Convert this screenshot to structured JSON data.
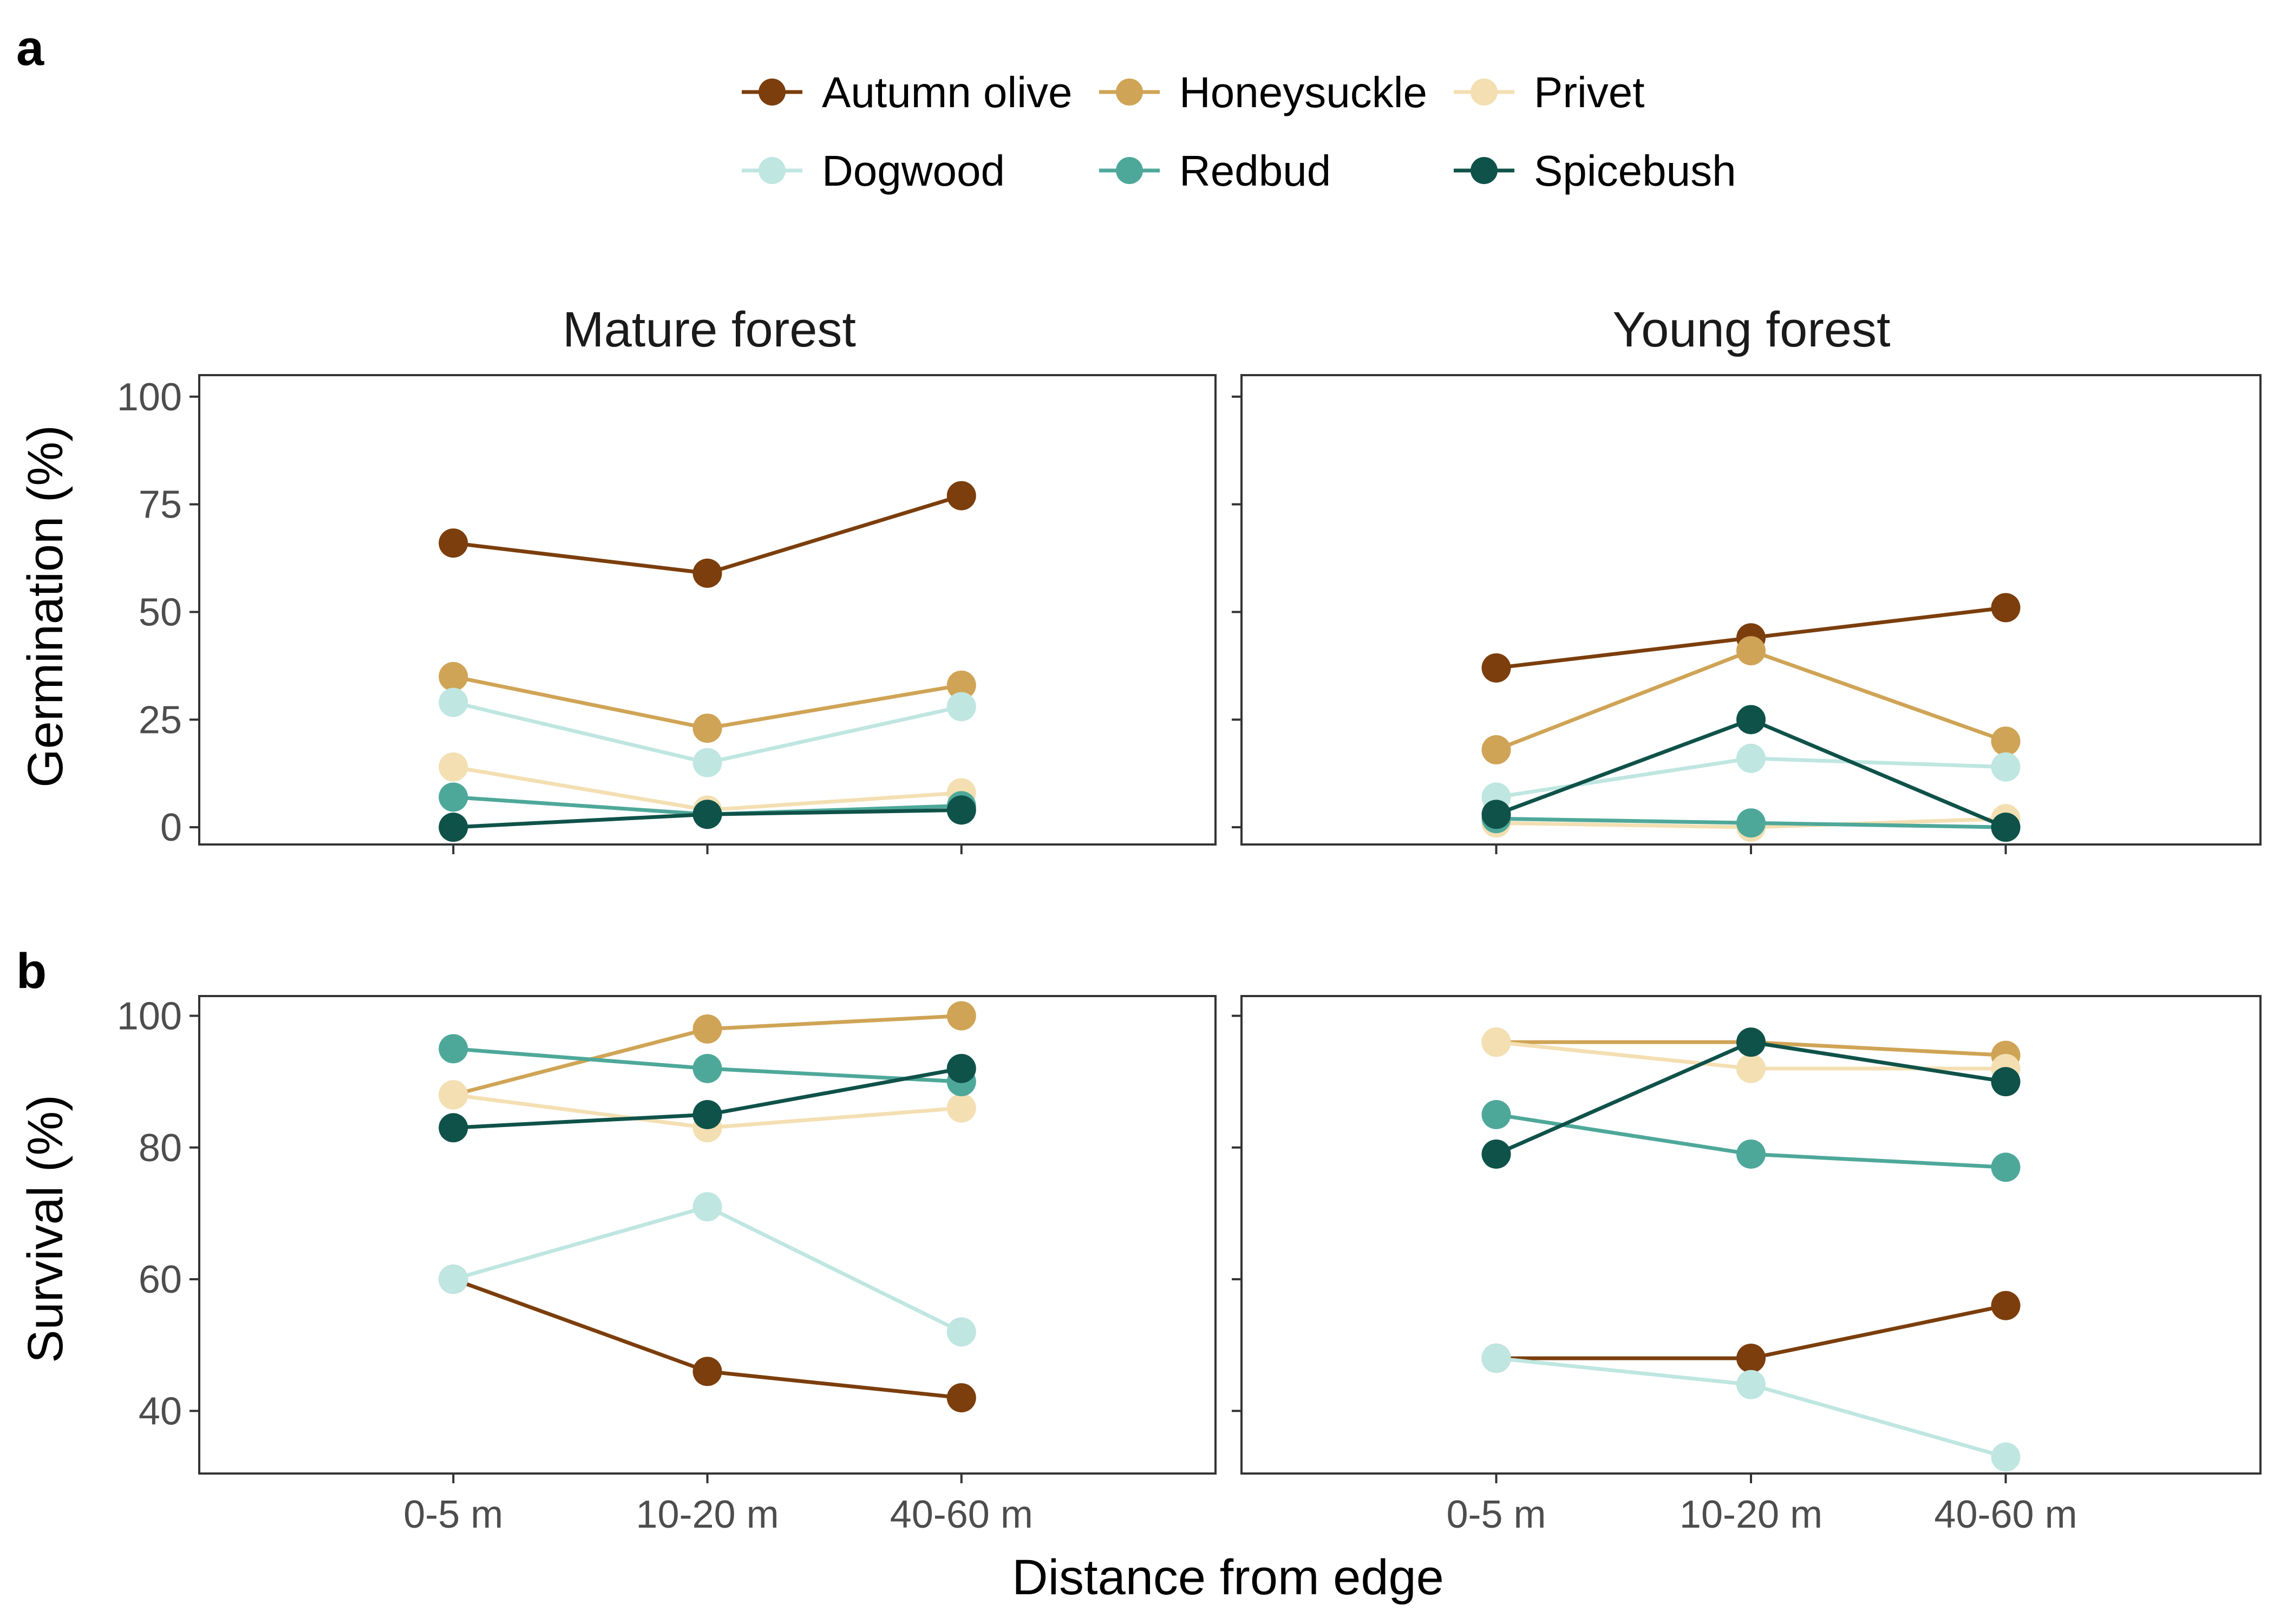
{
  "figure": {
    "panel_labels": [
      "a",
      "b"
    ],
    "facet_titles": [
      "Mature forest",
      "Young forest"
    ],
    "x_axis_title": "Distance from edge",
    "legend": [
      {
        "name": "Autumn olive",
        "color": "#7B3E0C"
      },
      {
        "name": "Honeysuckle",
        "color": "#CFA456"
      },
      {
        "name": "Privet",
        "color": "#F3DFB2"
      },
      {
        "name": "Dogwood",
        "color": "#BFE6E1"
      },
      {
        "name": "Redbud",
        "color": "#4EA89A"
      },
      {
        "name": "Spicebush",
        "color": "#0F5249"
      }
    ]
  },
  "chart_data": [
    {
      "type": "line",
      "panel": "a",
      "facet": "Mature forest",
      "categories": [
        "0-5 m",
        "10-20 m",
        "40-60 m"
      ],
      "ylabel": "Germination (%)",
      "ylim": [
        -4,
        105
      ],
      "yticks": [
        0,
        25,
        50,
        75,
        100
      ],
      "series": [
        {
          "name": "Autumn olive",
          "values": [
            66,
            59,
            77
          ]
        },
        {
          "name": "Honeysuckle",
          "values": [
            35,
            23,
            33
          ]
        },
        {
          "name": "Privet",
          "values": [
            14,
            4,
            8
          ]
        },
        {
          "name": "Dogwood",
          "values": [
            29,
            15,
            28
          ]
        },
        {
          "name": "Redbud",
          "values": [
            7,
            3,
            5
          ]
        },
        {
          "name": "Spicebush",
          "values": [
            0,
            3,
            4
          ]
        }
      ]
    },
    {
      "type": "line",
      "panel": "a",
      "facet": "Young forest",
      "categories": [
        "0-5 m",
        "10-20 m",
        "40-60 m"
      ],
      "ylabel": "Germination (%)",
      "ylim": [
        -4,
        105
      ],
      "yticks": [
        0,
        25,
        50,
        75,
        100
      ],
      "series": [
        {
          "name": "Autumn olive",
          "values": [
            37,
            44,
            51
          ]
        },
        {
          "name": "Honeysuckle",
          "values": [
            18,
            41,
            20
          ]
        },
        {
          "name": "Privet",
          "values": [
            1,
            0,
            2
          ]
        },
        {
          "name": "Dogwood",
          "values": [
            7,
            16,
            14
          ]
        },
        {
          "name": "Redbud",
          "values": [
            2,
            1,
            0
          ]
        },
        {
          "name": "Spicebush",
          "values": [
            3,
            25,
            0
          ]
        }
      ]
    },
    {
      "type": "line",
      "panel": "b",
      "facet": "Mature forest",
      "categories": [
        "0-5 m",
        "10-20 m",
        "40-60 m"
      ],
      "ylabel": "Survival (%)",
      "ylim": [
        30.5,
        103
      ],
      "yticks": [
        40,
        60,
        80,
        100
      ],
      "series": [
        {
          "name": "Autumn olive",
          "values": [
            60,
            46,
            42
          ]
        },
        {
          "name": "Honeysuckle",
          "values": [
            88,
            98,
            100
          ]
        },
        {
          "name": "Privet",
          "values": [
            88,
            83,
            86
          ]
        },
        {
          "name": "Dogwood",
          "values": [
            60,
            71,
            52
          ]
        },
        {
          "name": "Redbud",
          "values": [
            95,
            92,
            90
          ]
        },
        {
          "name": "Spicebush",
          "values": [
            83,
            85,
            92
          ]
        }
      ]
    },
    {
      "type": "line",
      "panel": "b",
      "facet": "Young forest",
      "categories": [
        "0-5 m",
        "10-20 m",
        "40-60 m"
      ],
      "ylabel": "Survival (%)",
      "ylim": [
        30.5,
        103
      ],
      "yticks": [
        40,
        60,
        80,
        100
      ],
      "series": [
        {
          "name": "Autumn olive",
          "values": [
            48,
            48,
            56
          ]
        },
        {
          "name": "Honeysuckle",
          "values": [
            96,
            96,
            94
          ]
        },
        {
          "name": "Privet",
          "values": [
            96,
            92,
            92
          ]
        },
        {
          "name": "Dogwood",
          "values": [
            48,
            44,
            33
          ]
        },
        {
          "name": "Redbud",
          "values": [
            85,
            79,
            77
          ]
        },
        {
          "name": "Spicebush",
          "values": [
            79,
            96,
            90
          ]
        }
      ]
    }
  ]
}
